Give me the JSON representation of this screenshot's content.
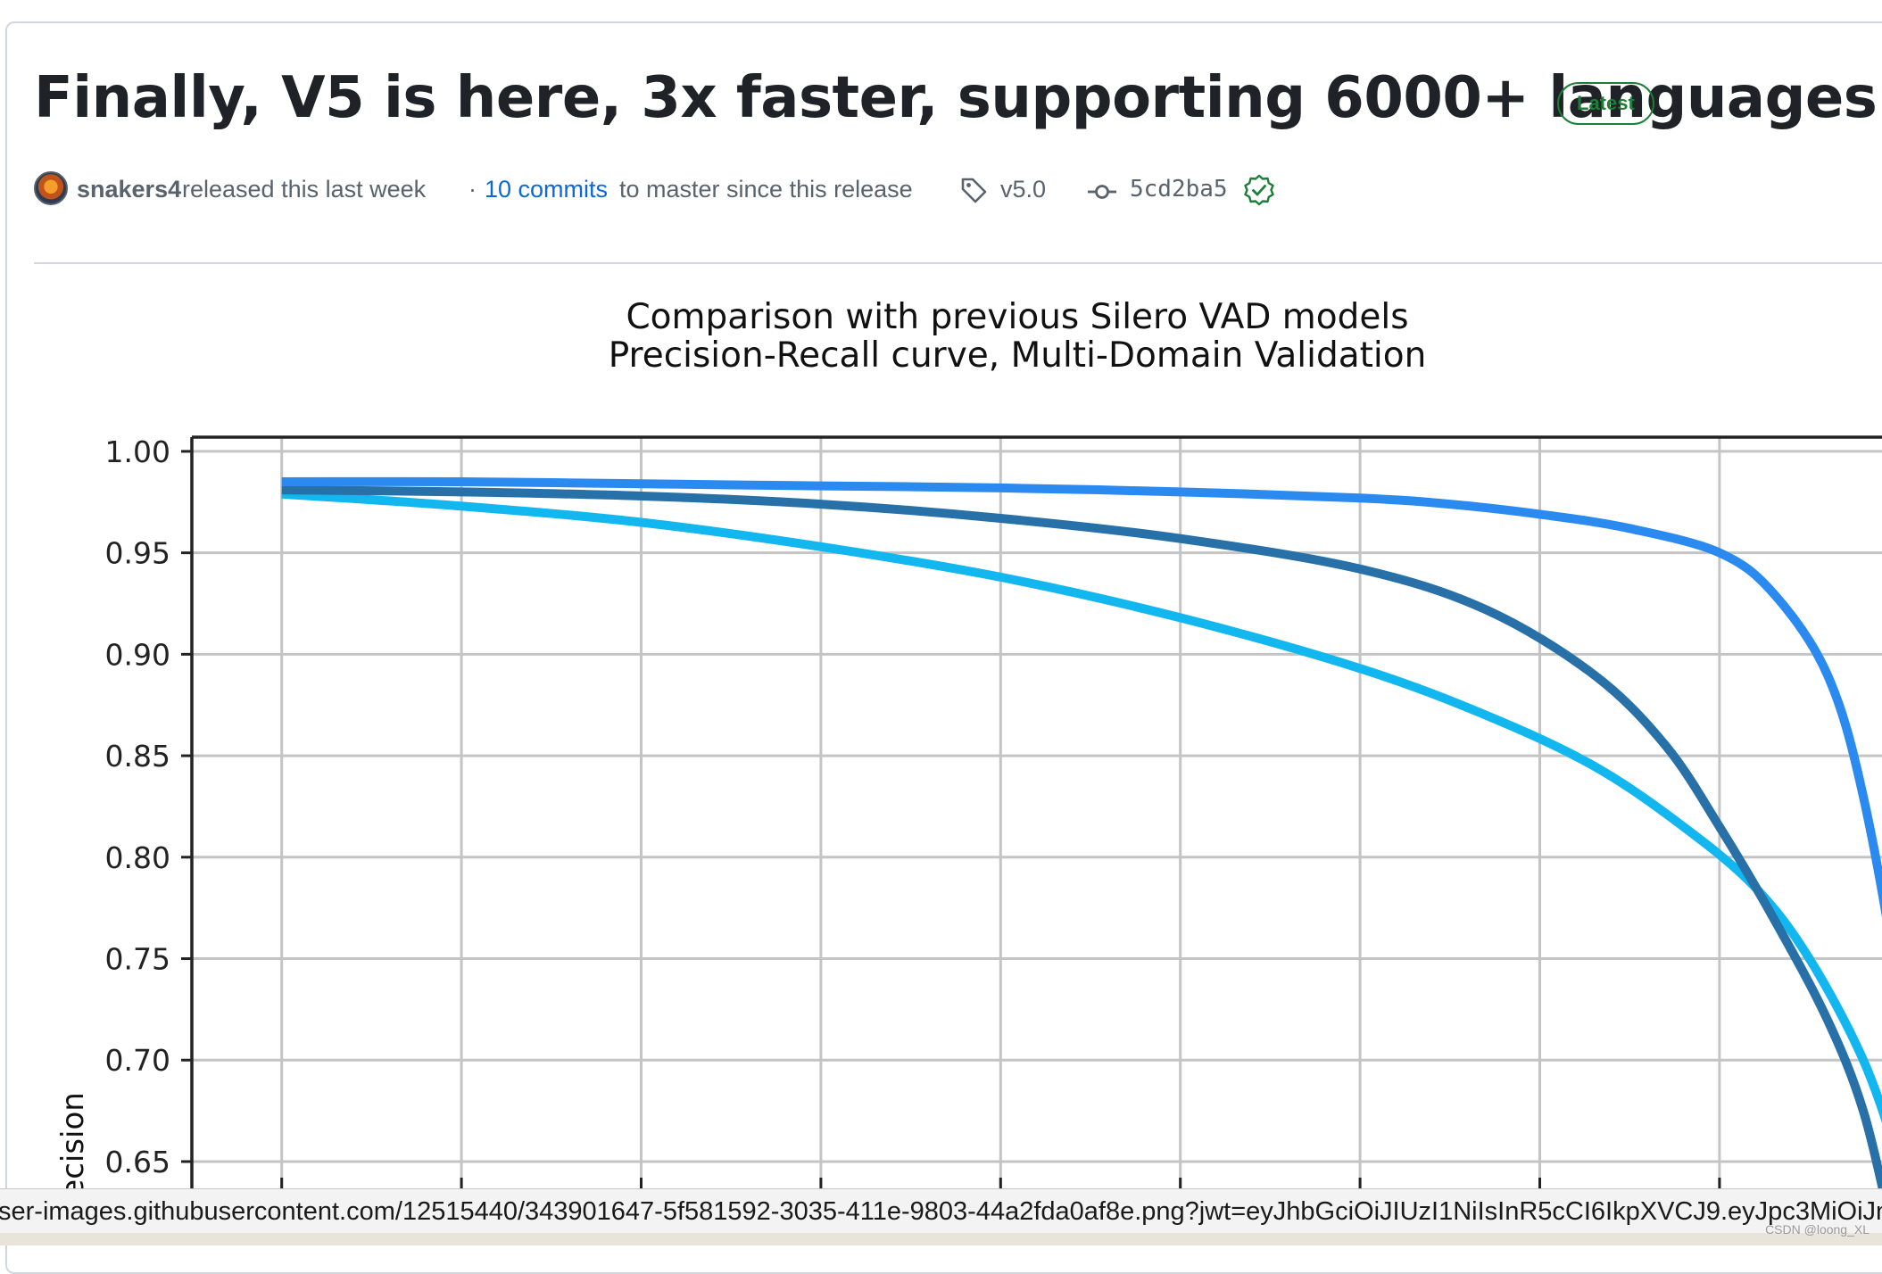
{
  "release": {
    "title": "Finally, V5 is here, 3x faster, supporting 6000+ languages!",
    "badge": "Latest",
    "author": "snakers4",
    "released_text": "released this last week",
    "dot": "·",
    "commits_link": "10 commits",
    "commits_suffix": "to master since this release",
    "tag": "v5.0",
    "commit_sha": "5cd2ba5"
  },
  "icons": {
    "avatar": "avatar-image",
    "tag": "tag-icon",
    "commit": "git-commit-icon",
    "verified": "verified-check-icon"
  },
  "colors": {
    "title": "#1f2328",
    "link": "#0969da",
    "muted": "#59636e",
    "badge_green": "#1a7f37",
    "border": "#d0d7de"
  },
  "chart_data": {
    "type": "line",
    "title": "Comparison with previous Silero VAD models",
    "subtitle": "Precision-Recall curve, Multi-Domain Validation",
    "xlabel": "",
    "ylabel": "Precision",
    "ylim": [
      0.628,
      1.007
    ],
    "yticks": [
      1.0,
      0.95,
      0.9,
      0.85,
      0.8,
      0.75,
      0.7,
      0.65
    ],
    "xlim": [
      0.0,
      1.0
    ],
    "xticks": [
      0.05,
      0.15,
      0.25,
      0.35,
      0.45,
      0.55,
      0.65,
      0.75,
      0.85,
      0.95,
      1.05
    ],
    "grid": true,
    "series": [
      {
        "color": "#2b8af0",
        "points": [
          [
            0.05,
            0.985
          ],
          [
            0.15,
            0.985
          ],
          [
            0.25,
            0.984
          ],
          [
            0.35,
            0.983
          ],
          [
            0.45,
            0.982
          ],
          [
            0.55,
            0.98
          ],
          [
            0.65,
            0.977
          ],
          [
            0.7,
            0.974
          ],
          [
            0.75,
            0.969
          ],
          [
            0.8,
            0.962
          ],
          [
            0.85,
            0.95
          ],
          [
            0.88,
            0.93
          ],
          [
            0.91,
            0.89
          ],
          [
            0.93,
            0.83
          ],
          [
            0.95,
            0.73
          ],
          [
            0.963,
            0.62
          ]
        ]
      },
      {
        "color": "#2771a8",
        "points": [
          [
            0.05,
            0.981
          ],
          [
            0.15,
            0.98
          ],
          [
            0.25,
            0.978
          ],
          [
            0.35,
            0.974
          ],
          [
            0.45,
            0.967
          ],
          [
            0.55,
            0.957
          ],
          [
            0.65,
            0.942
          ],
          [
            0.72,
            0.922
          ],
          [
            0.78,
            0.89
          ],
          [
            0.82,
            0.855
          ],
          [
            0.85,
            0.815
          ],
          [
            0.88,
            0.77
          ],
          [
            0.91,
            0.72
          ],
          [
            0.93,
            0.675
          ],
          [
            0.945,
            0.62
          ]
        ]
      },
      {
        "color": "#12b7ef",
        "points": [
          [
            0.05,
            0.979
          ],
          [
            0.15,
            0.973
          ],
          [
            0.25,
            0.965
          ],
          [
            0.35,
            0.953
          ],
          [
            0.45,
            0.938
          ],
          [
            0.55,
            0.918
          ],
          [
            0.65,
            0.893
          ],
          [
            0.72,
            0.87
          ],
          [
            0.78,
            0.845
          ],
          [
            0.83,
            0.815
          ],
          [
            0.87,
            0.785
          ],
          [
            0.9,
            0.75
          ],
          [
            0.93,
            0.7
          ],
          [
            0.95,
            0.65
          ],
          [
            0.96,
            0.62
          ]
        ]
      }
    ]
  },
  "status_bar": {
    "url": "ser-images.githubusercontent.com/12515440/343901647-5f581592-3035-411e-9803-44a2fda0af8e.png?jwt=eyJhbGciOiJIUzI1NiIsInR5cCI6IkpXVCJ9.eyJpc3MiOiJnaXRodWIuY29tIiwiYXVkIjoicmF3LmdpdGh1YnVzZXJjb250ZW50LmNvbSJ9"
  },
  "watermark": "CSDN @loong_XL"
}
